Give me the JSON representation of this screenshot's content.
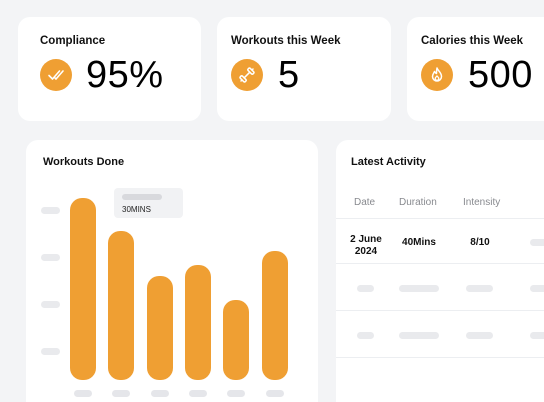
{
  "stats": {
    "compliance": {
      "title": "Compliance",
      "value": "95%",
      "icon": "double-check-icon"
    },
    "workouts": {
      "title": "Workouts this Week",
      "value": "5",
      "icon": "dumbbell-icon"
    },
    "calories": {
      "title": "Calories this Week",
      "value": "500",
      "icon": "flame-icon"
    }
  },
  "workouts_done": {
    "title": "Workouts Done",
    "tooltip": "30MINS"
  },
  "chart_data": {
    "type": "bar",
    "title": "Workouts Done",
    "categories": [
      "",
      "",
      "",
      "",
      "",
      ""
    ],
    "values": [
      1.0,
      0.82,
      0.57,
      0.63,
      0.44,
      0.71
    ],
    "note_values_relative": true
  },
  "latest_activity": {
    "title": "Latest Activity",
    "columns": [
      "Date",
      "Duration",
      "Intensity"
    ],
    "row": {
      "date": "2 June\n2024",
      "duration": "40Mins",
      "intensity": "8/10"
    }
  },
  "colors": {
    "accent": "#ef9f33",
    "background": "#f3f4f6",
    "card": "#ffffff"
  }
}
